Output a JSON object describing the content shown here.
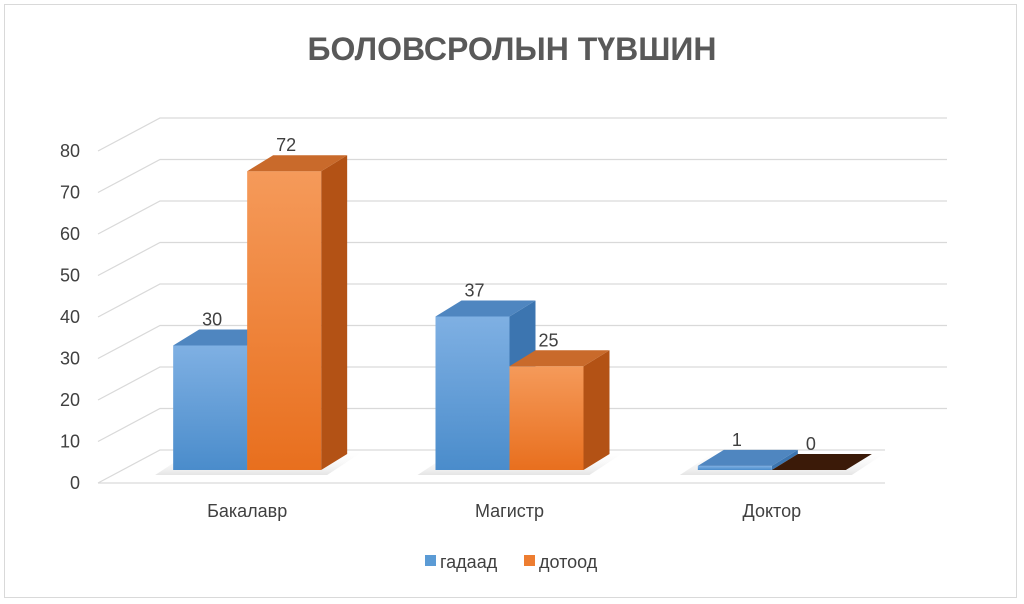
{
  "chart_data": {
    "type": "bar",
    "title": "БОЛОВСРОЛЫН ТҮВШИН",
    "categories": [
      "Бакалавр",
      "Магистр",
      "Доктор"
    ],
    "series": [
      {
        "name": "гадаад",
        "values": [
          30,
          37,
          1
        ],
        "color": "#5b9bd5"
      },
      {
        "name": "дотоод",
        "values": [
          72,
          25,
          0
        ],
        "color": "#ed7d31"
      }
    ],
    "yticks": [
      "0",
      "10",
      "20",
      "30",
      "40",
      "50",
      "60",
      "70",
      "80"
    ],
    "ylim": [
      0,
      80
    ],
    "xlabel": "",
    "ylabel": "",
    "grid": true,
    "legend_position": "bottom",
    "style": "3d-clustered-column"
  }
}
